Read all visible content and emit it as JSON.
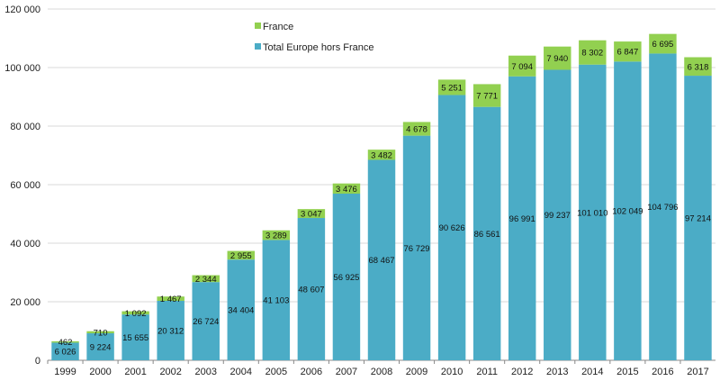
{
  "chart_data": {
    "type": "bar",
    "stacked": true,
    "title": "",
    "xlabel": "",
    "ylabel": "",
    "ylim": [
      0,
      120000
    ],
    "yticks": [
      "0",
      "20 000",
      "40 000",
      "60 000",
      "80 000",
      "100 000",
      "120 000"
    ],
    "ytick_values": [
      0,
      20000,
      40000,
      60000,
      80000,
      100000,
      120000
    ],
    "grid": true,
    "legend_position": "top-left",
    "categories": [
      "1999",
      "2000",
      "2001",
      "2002",
      "2003",
      "2004",
      "2005",
      "2006",
      "2007",
      "2008",
      "2009",
      "2010",
      "2011",
      "2012",
      "2013",
      "2014",
      "2015",
      "2016",
      "2017"
    ],
    "series": [
      {
        "name": "Total Europe hors France",
        "color": "#4bacc6",
        "values": [
          6026,
          9224,
          15655,
          20312,
          26724,
          34404,
          41103,
          48607,
          56925,
          68467,
          76729,
          90626,
          86561,
          96991,
          99237,
          101010,
          102049,
          104796,
          97214
        ],
        "labels": [
          "6 026",
          "9 224",
          "15 655",
          "20 312",
          "26 724",
          "34 404",
          "41 103",
          "48 607",
          "56 925",
          "68 467",
          "76 729",
          "90 626",
          "86 561",
          "96 991",
          "99 237",
          "101 010",
          "102 049",
          "104 796",
          "97 214"
        ]
      },
      {
        "name": "France",
        "color": "#92d050",
        "values": [
          462,
          710,
          1092,
          1467,
          2344,
          2955,
          3289,
          3047,
          3476,
          3482,
          4678,
          5251,
          7771,
          7094,
          7940,
          8302,
          6847,
          6695,
          6318
        ],
        "labels": [
          "462",
          "710",
          "1 092",
          "1 467",
          "2 344",
          "2 955",
          "3 289",
          "3 047",
          "3 476",
          "3 482",
          "4 678",
          "5 251",
          "7 771",
          "7 094",
          "7 940",
          "8 302",
          "6 847",
          "6 695",
          "6 318"
        ]
      }
    ],
    "legend": [
      {
        "name": "France",
        "color": "#92d050"
      },
      {
        "name": "Total Europe hors France",
        "color": "#4bacc6"
      }
    ]
  }
}
